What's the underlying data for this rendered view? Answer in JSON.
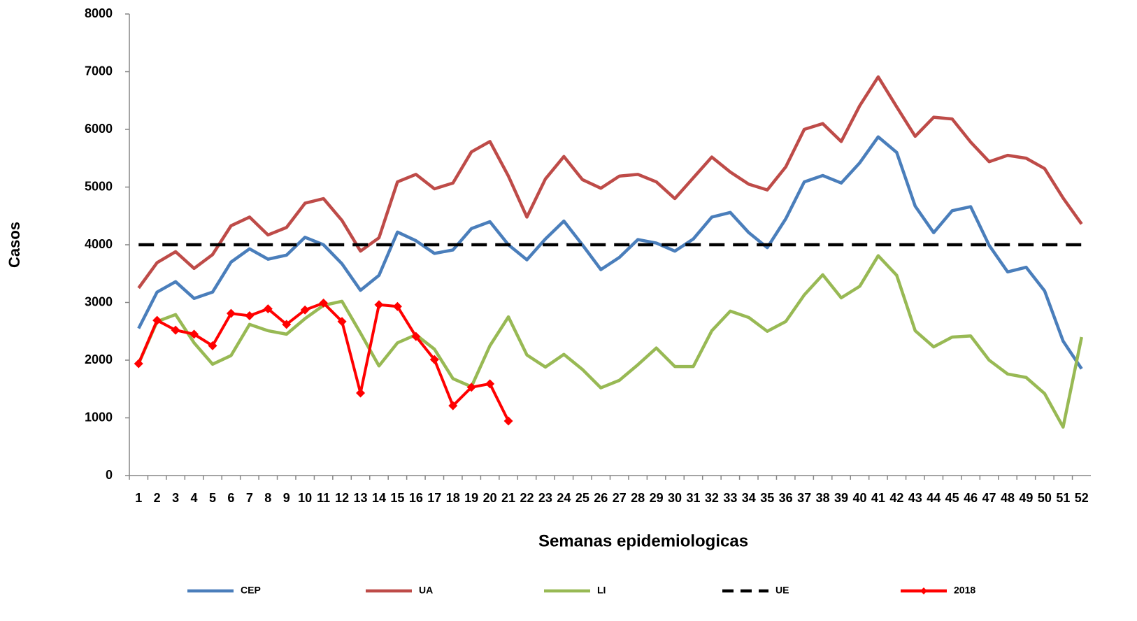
{
  "chart_data": {
    "type": "line",
    "x_label": "Semanas epidemiologicas",
    "y_label": "Casos",
    "categories": [
      "1",
      "2",
      "3",
      "4",
      "5",
      "6",
      "7",
      "8",
      "9",
      "10",
      "11",
      "12",
      "13",
      "14",
      "15",
      "16",
      "17",
      "18",
      "19",
      "20",
      "21",
      "22",
      "23",
      "24",
      "25",
      "26",
      "27",
      "28",
      "29",
      "30",
      "31",
      "32",
      "33",
      "34",
      "35",
      "36",
      "37",
      "38",
      "39",
      "40",
      "41",
      "42",
      "43",
      "44",
      "45",
      "46",
      "47",
      "48",
      "49",
      "50",
      "51",
      "52"
    ],
    "ylim": [
      0,
      8000
    ],
    "yticks": [
      0,
      1000,
      2000,
      3000,
      4000,
      5000,
      6000,
      7000,
      8000
    ],
    "legend": "bottom",
    "series": [
      {
        "name": "CEP",
        "color": "#4a7ebb",
        "dashed": false,
        "markers": false,
        "values": [
          2550,
          3180,
          3360,
          3070,
          3180,
          3700,
          3930,
          3750,
          3820,
          4130,
          4000,
          3670,
          3210,
          3470,
          4220,
          4070,
          3850,
          3910,
          4280,
          4400,
          4000,
          3740,
          4100,
          4410,
          4000,
          3570,
          3780,
          4090,
          4030,
          3890,
          4100,
          4480,
          4560,
          4210,
          3950,
          4450,
          5090,
          5200,
          5070,
          5420,
          5870,
          5600,
          4670,
          4210,
          4590,
          4660,
          3990,
          3530,
          3610,
          3200,
          2330,
          1850
        ]
      },
      {
        "name": "UA",
        "color": "#be4b48",
        "dashed": false,
        "markers": false,
        "values": [
          3250,
          3690,
          3880,
          3590,
          3830,
          4330,
          4480,
          4170,
          4300,
          4720,
          4800,
          4420,
          3890,
          4120,
          5090,
          5220,
          4970,
          5070,
          5610,
          5790,
          5190,
          4480,
          5140,
          5530,
          5130,
          4980,
          5190,
          5220,
          5090,
          4800,
          5160,
          5520,
          5260,
          5050,
          4950,
          5350,
          6000,
          6100,
          5790,
          6410,
          6910,
          6390,
          5880,
          6210,
          6180,
          5780,
          5440,
          5550,
          5500,
          5320,
          4810,
          4360
        ]
      },
      {
        "name": "LI",
        "color": "#98b954",
        "dashed": false,
        "markers": false,
        "values": [
          1940,
          2670,
          2790,
          2300,
          1930,
          2080,
          2620,
          2510,
          2450,
          2720,
          2950,
          3020,
          2470,
          1900,
          2300,
          2440,
          2190,
          1680,
          1540,
          2250,
          2750,
          2090,
          1880,
          2100,
          1840,
          1520,
          1650,
          1920,
          2210,
          1890,
          1890,
          2510,
          2850,
          2740,
          2500,
          2670,
          3130,
          3480,
          3080,
          3280,
          3810,
          3470,
          2510,
          2230,
          2400,
          2420,
          2000,
          1760,
          1700,
          1420,
          840,
          2400
        ]
      },
      {
        "name": "UE",
        "color": "#000000",
        "dashed": true,
        "markers": false,
        "values": [
          4000,
          4000,
          4000,
          4000,
          4000,
          4000,
          4000,
          4000,
          4000,
          4000,
          4000,
          4000,
          4000,
          4000,
          4000,
          4000,
          4000,
          4000,
          4000,
          4000,
          4000,
          4000,
          4000,
          4000,
          4000,
          4000,
          4000,
          4000,
          4000,
          4000,
          4000,
          4000,
          4000,
          4000,
          4000,
          4000,
          4000,
          4000,
          4000,
          4000,
          4000,
          4000,
          4000,
          4000,
          4000,
          4000,
          4000,
          4000,
          4000,
          4000,
          4000,
          4000
        ]
      },
      {
        "name": "2018",
        "color": "#ff0000",
        "dashed": false,
        "markers": true,
        "values": [
          1940,
          2690,
          2520,
          2450,
          2250,
          2810,
          2770,
          2890,
          2620,
          2870,
          2990,
          2670,
          1430,
          2960,
          2930,
          2410,
          2010,
          1210,
          1530,
          1590,
          945,
          null,
          null,
          null,
          null,
          null,
          null,
          null,
          null,
          null,
          null,
          null,
          null,
          null,
          null,
          null,
          null,
          null,
          null,
          null,
          null,
          null,
          null,
          null,
          null,
          null,
          null,
          null,
          null,
          null,
          null,
          null
        ]
      }
    ]
  }
}
